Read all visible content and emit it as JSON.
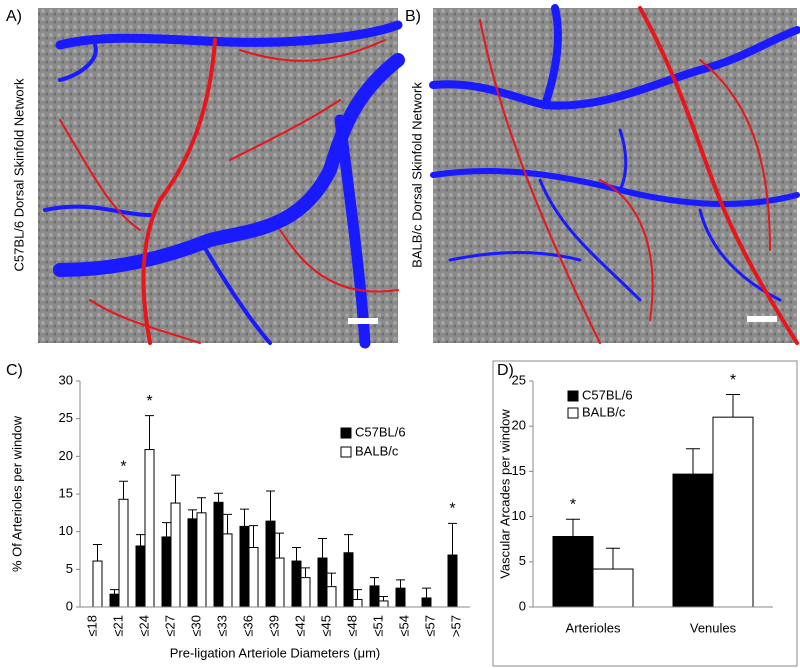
{
  "panels": [
    {
      "label": "A)",
      "caption": "C57BL/6 Dorsal Skinfold Network"
    },
    {
      "label": "B)",
      "caption": "BALB/c Dorsal Skinfold Network"
    }
  ],
  "chart_data": [
    {
      "type": "bar",
      "panel_label": "C)",
      "x_label": "Pre-ligation Arteriole Diameters (μm)",
      "y_label": "% Of Arterioles per window",
      "categories": [
        "≤18",
        "≤21",
        "≤24",
        "≤27",
        "≤30",
        "≤33",
        "≤36",
        "≤39",
        "≤42",
        "≤45",
        "≤48",
        "≤51",
        "≤54",
        "≤57",
        ">57"
      ],
      "series": [
        {
          "name": "C57BL/6",
          "color": "#000000",
          "values": [
            0,
            1.7,
            8.1,
            9.3,
            11.7,
            13.9,
            10.7,
            11.4,
            6.1,
            6.5,
            7.2,
            2.8,
            2.5,
            1.2,
            6.9
          ],
          "errors": [
            null,
            0.6,
            1.5,
            1.9,
            1.2,
            1.2,
            2.3,
            4.0,
            1.8,
            2.6,
            2.4,
            1.1,
            1.1,
            1.3,
            4.2
          ]
        },
        {
          "name": "BALB/c",
          "color": "#ffffff",
          "values": [
            6.1,
            14.3,
            20.9,
            13.8,
            12.5,
            9.7,
            7.9,
            6.5,
            3.9,
            2.7,
            1.0,
            0.8,
            0,
            0,
            0
          ],
          "errors": [
            2.2,
            2.4,
            4.5,
            3.7,
            2.0,
            2.6,
            2.9,
            3.3,
            1.3,
            1.8,
            1.3,
            0.6,
            null,
            null,
            null
          ]
        }
      ],
      "annotations": [
        {
          "text": "*",
          "series": 1,
          "category": 1
        },
        {
          "text": "*",
          "series": 1,
          "category": 2
        },
        {
          "text": "*",
          "series": 0,
          "category": 14
        }
      ],
      "ylim": [
        0,
        30
      ],
      "yticks": [
        0,
        5,
        10,
        15,
        20,
        25,
        30
      ],
      "grid": false
    },
    {
      "type": "bar",
      "panel_label": "D)",
      "y_label": "Vascular Arcades per window",
      "categories": [
        "Arterioles",
        "Venules"
      ],
      "series": [
        {
          "name": "C57BL/6",
          "color": "#000000",
          "values": [
            7.8,
            14.7
          ],
          "errors": [
            1.9,
            2.8
          ]
        },
        {
          "name": "BALB/c",
          "color": "#ffffff",
          "values": [
            4.2,
            21.0
          ],
          "errors": [
            2.3,
            2.5
          ]
        }
      ],
      "annotations": [
        {
          "text": "*",
          "series": 0,
          "category": 0
        },
        {
          "text": "*",
          "series": 1,
          "category": 1
        }
      ],
      "ylim": [
        0,
        25
      ],
      "yticks": [
        0,
        5,
        10,
        15,
        20,
        25
      ],
      "grid": false
    }
  ]
}
